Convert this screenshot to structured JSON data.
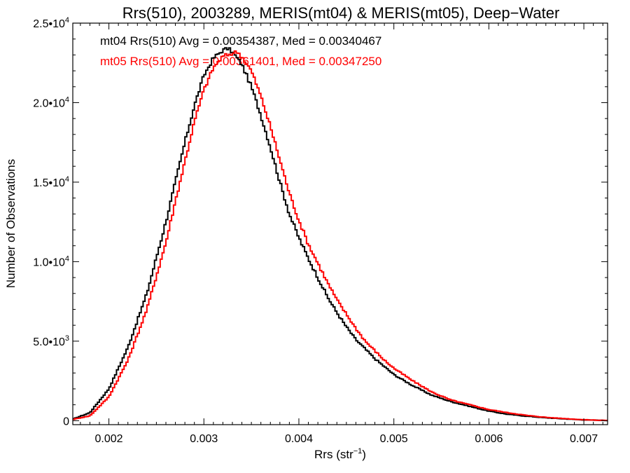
{
  "chart_data": {
    "type": "line",
    "step": true,
    "title": "Rrs(510), 2003289, MERIS(mt04) & MERIS(mt05), Deep−Water",
    "xlabel_main": "Rrs (str",
    "xlabel_sup": "−1",
    "xlabel_close": ")",
    "ylabel": "Number of Observations",
    "xlim": [
      0.00162,
      0.00725
    ],
    "ylim": [
      -250,
      25000
    ],
    "x_ticks": [
      {
        "value": 0.002,
        "label": "0.002"
      },
      {
        "value": 0.003,
        "label": "0.003"
      },
      {
        "value": 0.004,
        "label": "0.004"
      },
      {
        "value": 0.005,
        "label": "0.005"
      },
      {
        "value": 0.006,
        "label": "0.006"
      },
      {
        "value": 0.007,
        "label": "0.007"
      }
    ],
    "y_ticks": [
      {
        "value": 0,
        "mant": "0",
        "exp": ""
      },
      {
        "value": 5000,
        "mant": "5.0•10",
        "exp": "3"
      },
      {
        "value": 10000,
        "mant": "1.0•10",
        "exp": "4"
      },
      {
        "value": 15000,
        "mant": "1.5•10",
        "exp": "4"
      },
      {
        "value": 20000,
        "mant": "2.0•10",
        "exp": "4"
      },
      {
        "value": 25000,
        "mant": "2.5•10",
        "exp": "4"
      }
    ],
    "annotations": [
      {
        "text": "mt04 Rrs(510) Avg = 0.00354387, Med = 0.00340467",
        "color": "#000000"
      },
      {
        "text": "mt05 Rrs(510) Avg = 0.00361401, Med = 0.00347250",
        "color": "#ff0000"
      }
    ],
    "grid": false,
    "series": [
      {
        "color": "#000000",
        "x": [
          0.00162,
          0.0018,
          0.002,
          0.0022,
          0.0024,
          0.0026,
          0.0027,
          0.0028,
          0.0029,
          0.003,
          0.0031,
          0.0032,
          0.00325,
          0.0033,
          0.0034,
          0.0035,
          0.0036,
          0.0037,
          0.0038,
          0.0039,
          0.004,
          0.0041,
          0.0042,
          0.0043,
          0.0044,
          0.0045,
          0.0046,
          0.0047,
          0.0048,
          0.0049,
          0.005,
          0.0052,
          0.0054,
          0.0056,
          0.0058,
          0.006,
          0.0062,
          0.0064,
          0.0066,
          0.0068,
          0.007,
          0.0072,
          0.00725
        ],
        "y": [
          100,
          500,
          2000,
          4600,
          8000,
          12500,
          15000,
          17500,
          19800,
          21700,
          22800,
          23300,
          23400,
          23200,
          22400,
          21000,
          19200,
          17200,
          15000,
          13000,
          11500,
          10200,
          9000,
          7800,
          6800,
          5900,
          5100,
          4500,
          3900,
          3400,
          2900,
          2200,
          1600,
          1200,
          900,
          600,
          400,
          280,
          180,
          110,
          50,
          20,
          10
        ]
      },
      {
        "color": "#ff0000",
        "x": [
          0.00162,
          0.0018,
          0.002,
          0.0022,
          0.0024,
          0.0026,
          0.0027,
          0.0028,
          0.0029,
          0.003,
          0.0031,
          0.0032,
          0.0033,
          0.00335,
          0.0034,
          0.0035,
          0.0036,
          0.0037,
          0.0038,
          0.0039,
          0.004,
          0.0041,
          0.0042,
          0.0043,
          0.0044,
          0.0045,
          0.0046,
          0.0047,
          0.0048,
          0.0049,
          0.005,
          0.0052,
          0.0054,
          0.0056,
          0.0058,
          0.006,
          0.0062,
          0.0064,
          0.0066,
          0.0068,
          0.007,
          0.0072,
          0.00725
        ],
        "y": [
          80,
          300,
          1500,
          3800,
          7000,
          11200,
          13800,
          16300,
          18800,
          20800,
          22200,
          22900,
          23100,
          23200,
          22900,
          22000,
          20400,
          18500,
          16400,
          14300,
          12600,
          11100,
          9900,
          8700,
          7600,
          6700,
          5800,
          5000,
          4400,
          3800,
          3300,
          2500,
          1800,
          1300,
          1000,
          700,
          500,
          330,
          210,
          130,
          60,
          25,
          10
        ]
      }
    ]
  }
}
